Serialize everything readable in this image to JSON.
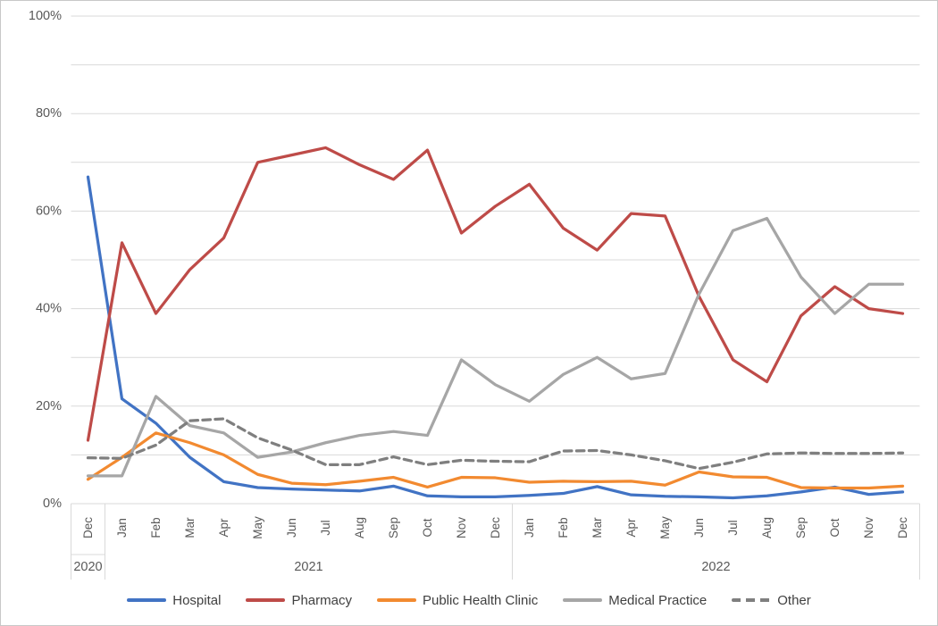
{
  "chart_data": {
    "type": "line",
    "title": "",
    "xlabel": "",
    "ylabel": "",
    "ylim": [
      0,
      100
    ],
    "y_minor_gridline_step": 10,
    "grid": true,
    "legend_position": "bottom",
    "gridline_color": "#d9d9d9",
    "axis_text_color": "#595959",
    "legend_text_color": "#404040",
    "x_categories_months": [
      "Dec",
      "Jan",
      "Feb",
      "Mar",
      "Apr",
      "May",
      "Jun",
      "Jul",
      "Aug",
      "Sep",
      "Oct",
      "Nov",
      "Dec",
      "Jan",
      "Feb",
      "Mar",
      "Apr",
      "May",
      "Jun",
      "Jul",
      "Aug",
      "Sep",
      "Oct",
      "Nov",
      "Dec"
    ],
    "x_year_groups": [
      {
        "label": "2020",
        "months": 1
      },
      {
        "label": "2021",
        "months": 12
      },
      {
        "label": "2022",
        "months": 12
      }
    ],
    "y_ticks": [
      {
        "value": 0,
        "label": "0%"
      },
      {
        "value": 20,
        "label": "20%"
      },
      {
        "value": 40,
        "label": "40%"
      },
      {
        "value": 60,
        "label": "60%"
      },
      {
        "value": 80,
        "label": "80%"
      },
      {
        "value": 100,
        "label": "100%"
      }
    ],
    "series": [
      {
        "name": "Hospital",
        "color": "#4173c4",
        "dash": "solid",
        "values": [
          67,
          21.5,
          16.5,
          9.5,
          4.5,
          3.3,
          3,
          2.8,
          2.6,
          3.6,
          1.6,
          1.4,
          1.4,
          1.7,
          2.1,
          3.5,
          1.8,
          1.5,
          1.4,
          1.2,
          1.6,
          2.4,
          3.4,
          1.9,
          2.4
        ]
      },
      {
        "name": "Pharmacy",
        "color": "#be4b48",
        "dash": "solid",
        "values": [
          13,
          53.5,
          39,
          48,
          54.5,
          70,
          71.5,
          73,
          69.5,
          66.5,
          72.5,
          55.5,
          61,
          65.5,
          56.5,
          52,
          59.5,
          59,
          42.5,
          29.5,
          25,
          38.5,
          44.5,
          40,
          39
        ]
      },
      {
        "name": "Public Health Clinic",
        "color": "#f28a30",
        "dash": "solid",
        "values": [
          5,
          9.5,
          14.5,
          12.5,
          10,
          6,
          4.2,
          3.9,
          4.6,
          5.4,
          3.4,
          5.4,
          5.3,
          4.4,
          4.6,
          4.5,
          4.6,
          3.8,
          6.5,
          5.5,
          5.4,
          3.3,
          3.2,
          3.2,
          3.6
        ]
      },
      {
        "name": "Medical Practice",
        "color": "#a6a6a6",
        "dash": "solid",
        "values": [
          5.7,
          5.7,
          22,
          16,
          14.5,
          9.5,
          10.6,
          12.5,
          14,
          14.8,
          14,
          29.5,
          24.4,
          21,
          26.5,
          30,
          25.6,
          26.7,
          43,
          56,
          58.5,
          46.5,
          39,
          45,
          45
        ]
      },
      {
        "name": "Other",
        "color": "#7f7f7f",
        "dash": "dashed",
        "values": [
          9.4,
          9.3,
          12,
          17,
          17.4,
          13.5,
          11,
          8,
          8,
          9.6,
          8,
          8.9,
          8.7,
          8.6,
          10.8,
          10.9,
          10,
          8.8,
          7.2,
          8.5,
          10.2,
          10.4,
          10.3,
          10.3,
          10.4
        ]
      }
    ]
  }
}
